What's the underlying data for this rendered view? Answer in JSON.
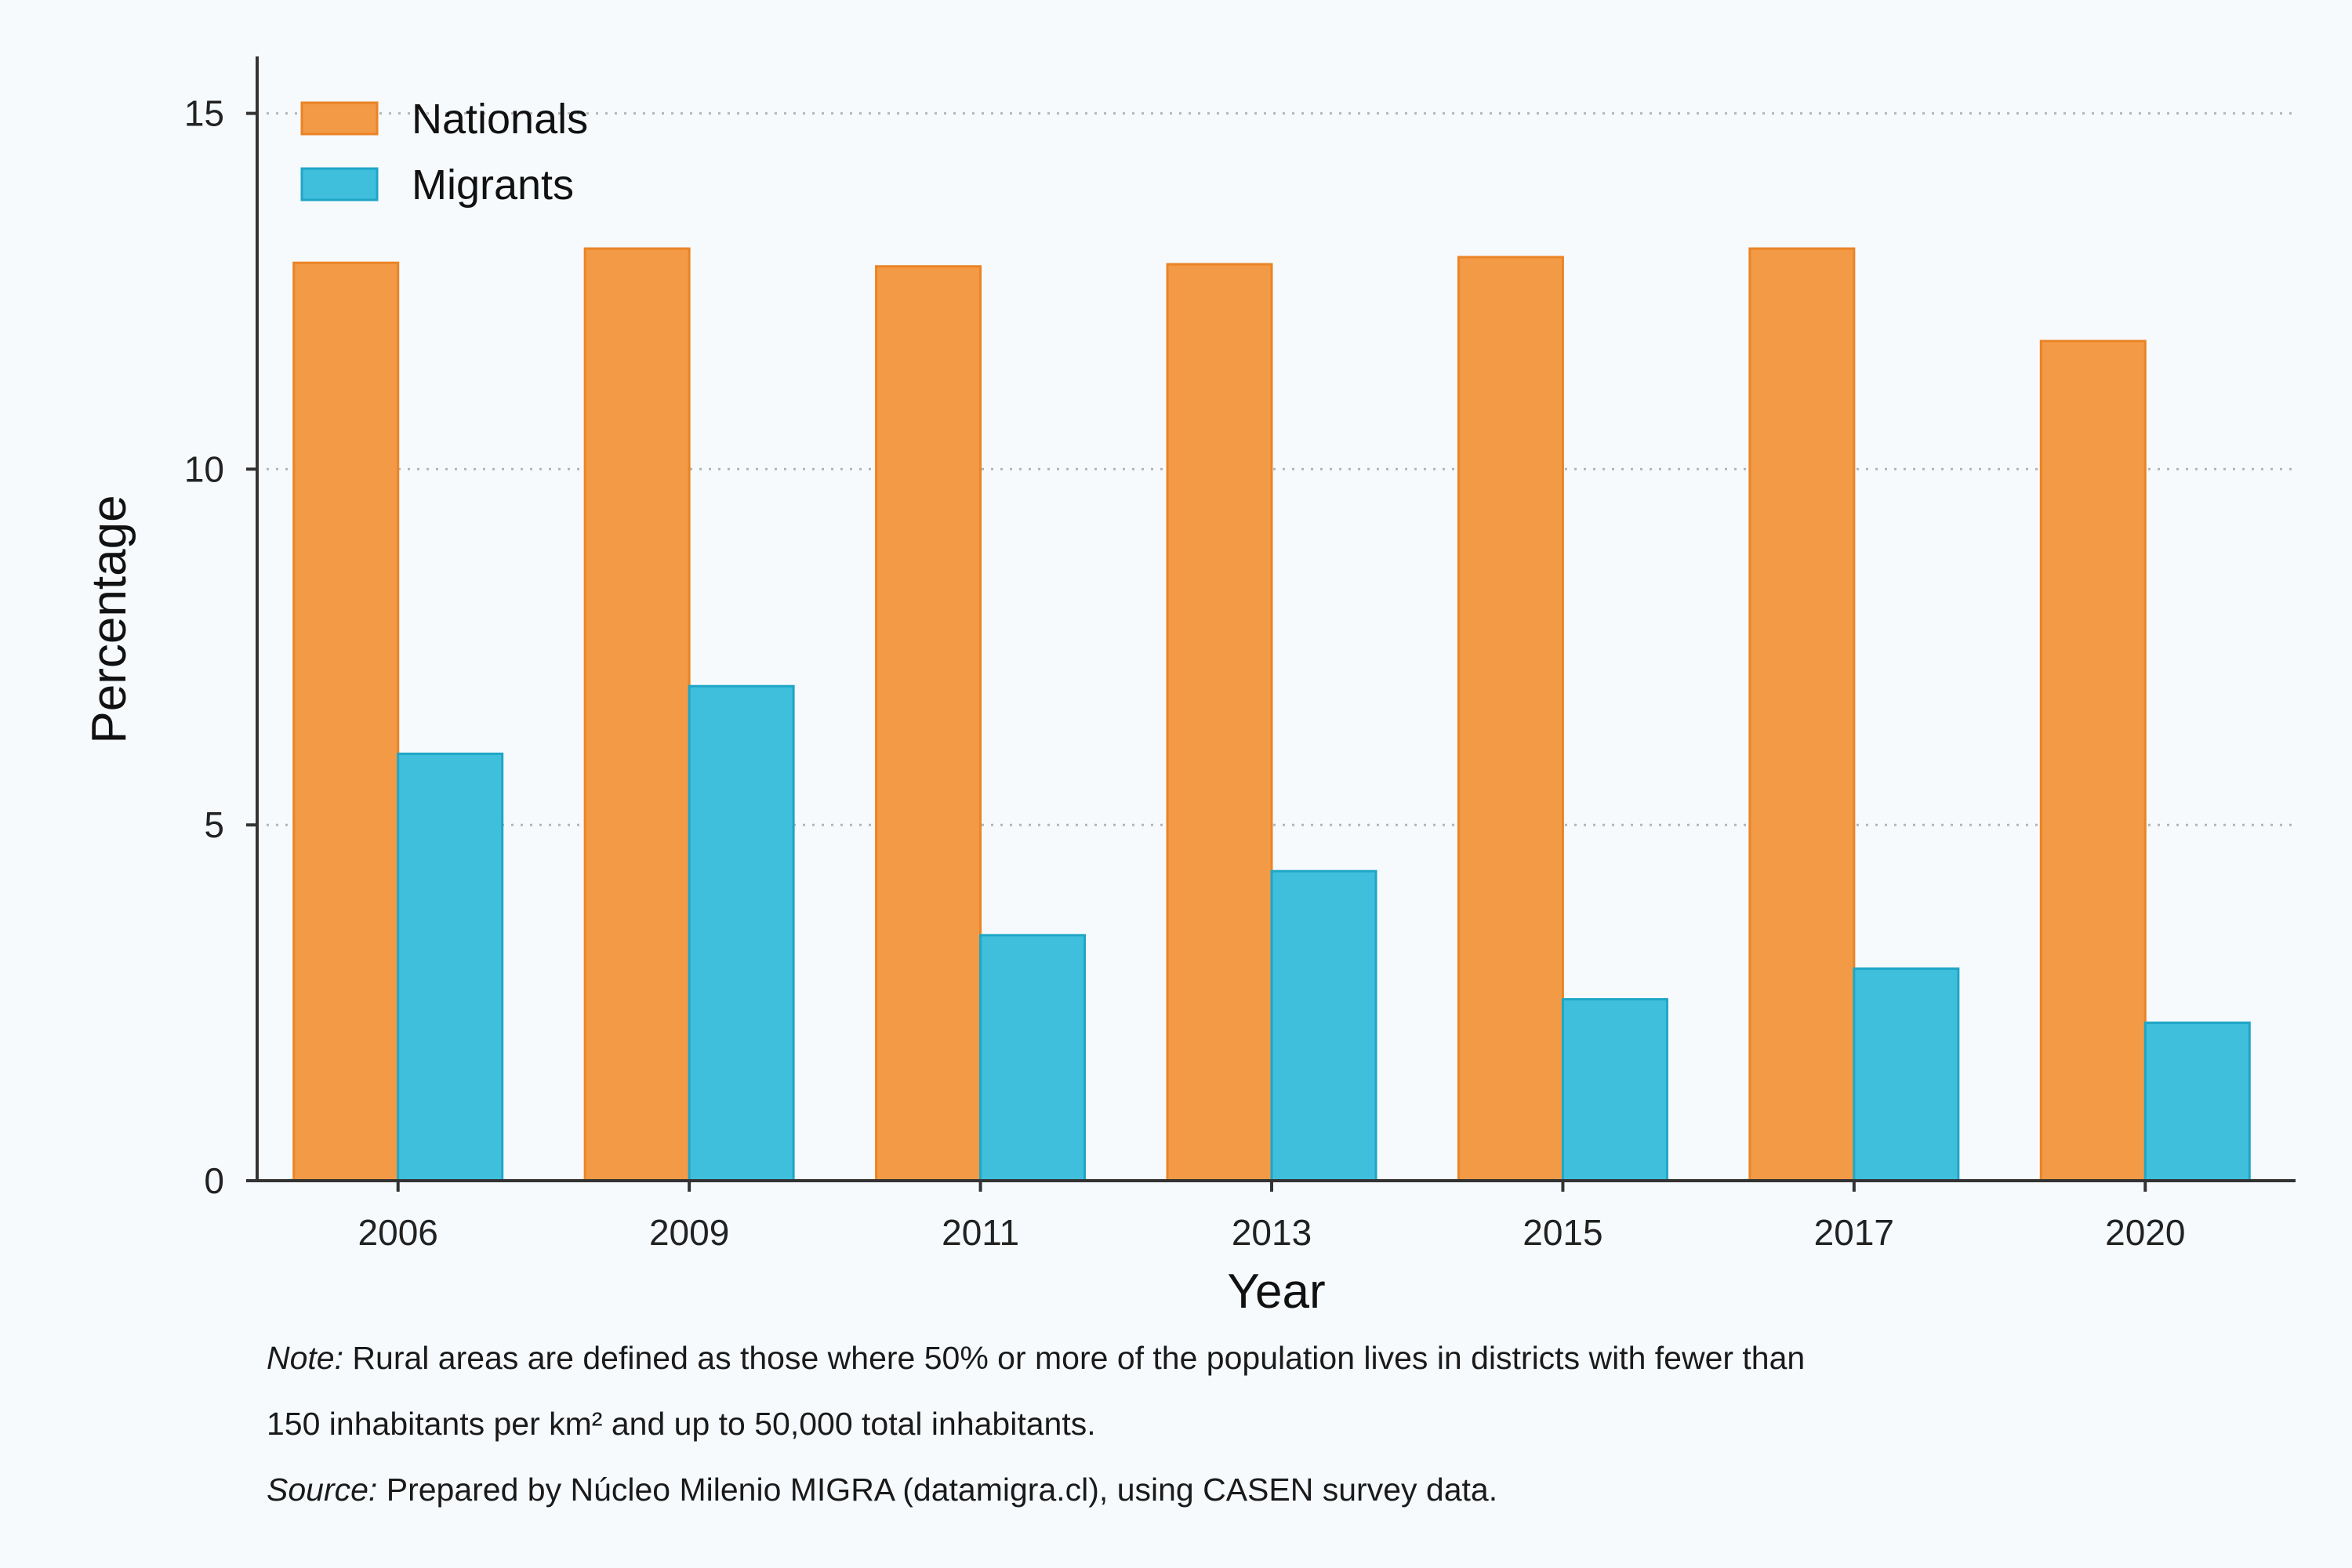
{
  "colors": {
    "background": "#f7fafd",
    "nationals_fill": "#f39a46",
    "nationals_stroke": "#ea8426",
    "migrants_fill": "#40bfdd",
    "migrants_stroke": "#1fa6c7",
    "axis": "#333333",
    "grid": "#b5b5b5"
  },
  "chart_data": {
    "type": "bar",
    "title": "",
    "xlabel": "Year",
    "ylabel": "Percentage",
    "categories": [
      "2006",
      "2009",
      "2011",
      "2013",
      "2015",
      "2017",
      "2020"
    ],
    "series": [
      {
        "name": "Nationals",
        "values": [
          12.9,
          13.1,
          12.85,
          12.88,
          12.98,
          13.1,
          11.8
        ]
      },
      {
        "name": "Migrants",
        "values": [
          6.0,
          6.95,
          3.45,
          4.35,
          2.55,
          2.98,
          2.22
        ]
      }
    ],
    "ylim": [
      0,
      15.8
    ],
    "yticks": [
      "0",
      "5",
      "10",
      "15"
    ],
    "grid": "horizontal dotted",
    "legend_position": "top-left"
  },
  "notes": {
    "note_label": "Note:",
    "note_line1": "Rural areas are defined as those where 50% or more of the population lives in districts with fewer than",
    "note_line2": "150 inhabitants per km² and up to 50,000 total inhabitants.",
    "source_label": "Source:",
    "source_text": "Prepared by Núcleo Milenio MIGRA (datamigra.cl), using CASEN survey data."
  }
}
